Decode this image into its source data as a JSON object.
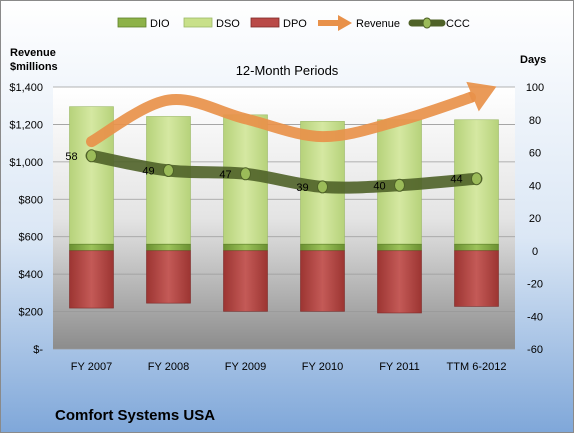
{
  "company_name": "Comfort Systems USA",
  "chart_data": {
    "type": "bar",
    "title": "12-Month Periods",
    "categories": [
      "FY 2007",
      "FY 2008",
      "FY 2009",
      "FY 2010",
      "FY 2011",
      "TTM 6-2012"
    ],
    "left_axis": {
      "title_line1": "Revenue",
      "title_line2": "$millions",
      "range": [
        0,
        1400
      ],
      "ticks": [
        0,
        200,
        400,
        600,
        800,
        1000,
        1200,
        1400
      ],
      "tick_labels": [
        "$-",
        "$200",
        "$400",
        "$600",
        "$800",
        "$1,000",
        "$1,200",
        "$1,400"
      ]
    },
    "right_axis": {
      "title": "Days",
      "range": [
        -60,
        100
      ],
      "ticks": [
        -60,
        -40,
        -20,
        0,
        20,
        40,
        60,
        80,
        100
      ],
      "tick_labels": [
        "-60",
        "-40",
        "-20",
        "0",
        "20",
        "40",
        "60",
        "80",
        "100"
      ]
    },
    "series": [
      {
        "name": "DIO",
        "type": "stacked-bar",
        "axis": "right",
        "color": "#7aa33c",
        "values": [
          4,
          4,
          4,
          4,
          4,
          4
        ]
      },
      {
        "name": "DSO",
        "type": "stacked-bar",
        "axis": "right",
        "color": "#c8e08a",
        "values": [
          84,
          78,
          79,
          75,
          76,
          76
        ]
      },
      {
        "name": "DPO",
        "type": "bar-negative",
        "axis": "right",
        "color": "#b94a48",
        "values": [
          -35,
          -32,
          -37,
          -37,
          -38,
          -34
        ]
      },
      {
        "name": "Revenue",
        "type": "line",
        "axis": "left",
        "color": "#e8914a",
        "values": [
          1108,
          1330,
          1230,
          1135,
          1220,
          1360
        ]
      },
      {
        "name": "CCC",
        "type": "line",
        "axis": "right",
        "color": "#4f6228",
        "values": [
          58,
          49,
          47,
          39,
          40,
          44
        ],
        "labels": [
          "58",
          "49",
          "47",
          "39",
          "40",
          "44"
        ]
      }
    ],
    "legend_position": "top",
    "gridlines": true
  }
}
